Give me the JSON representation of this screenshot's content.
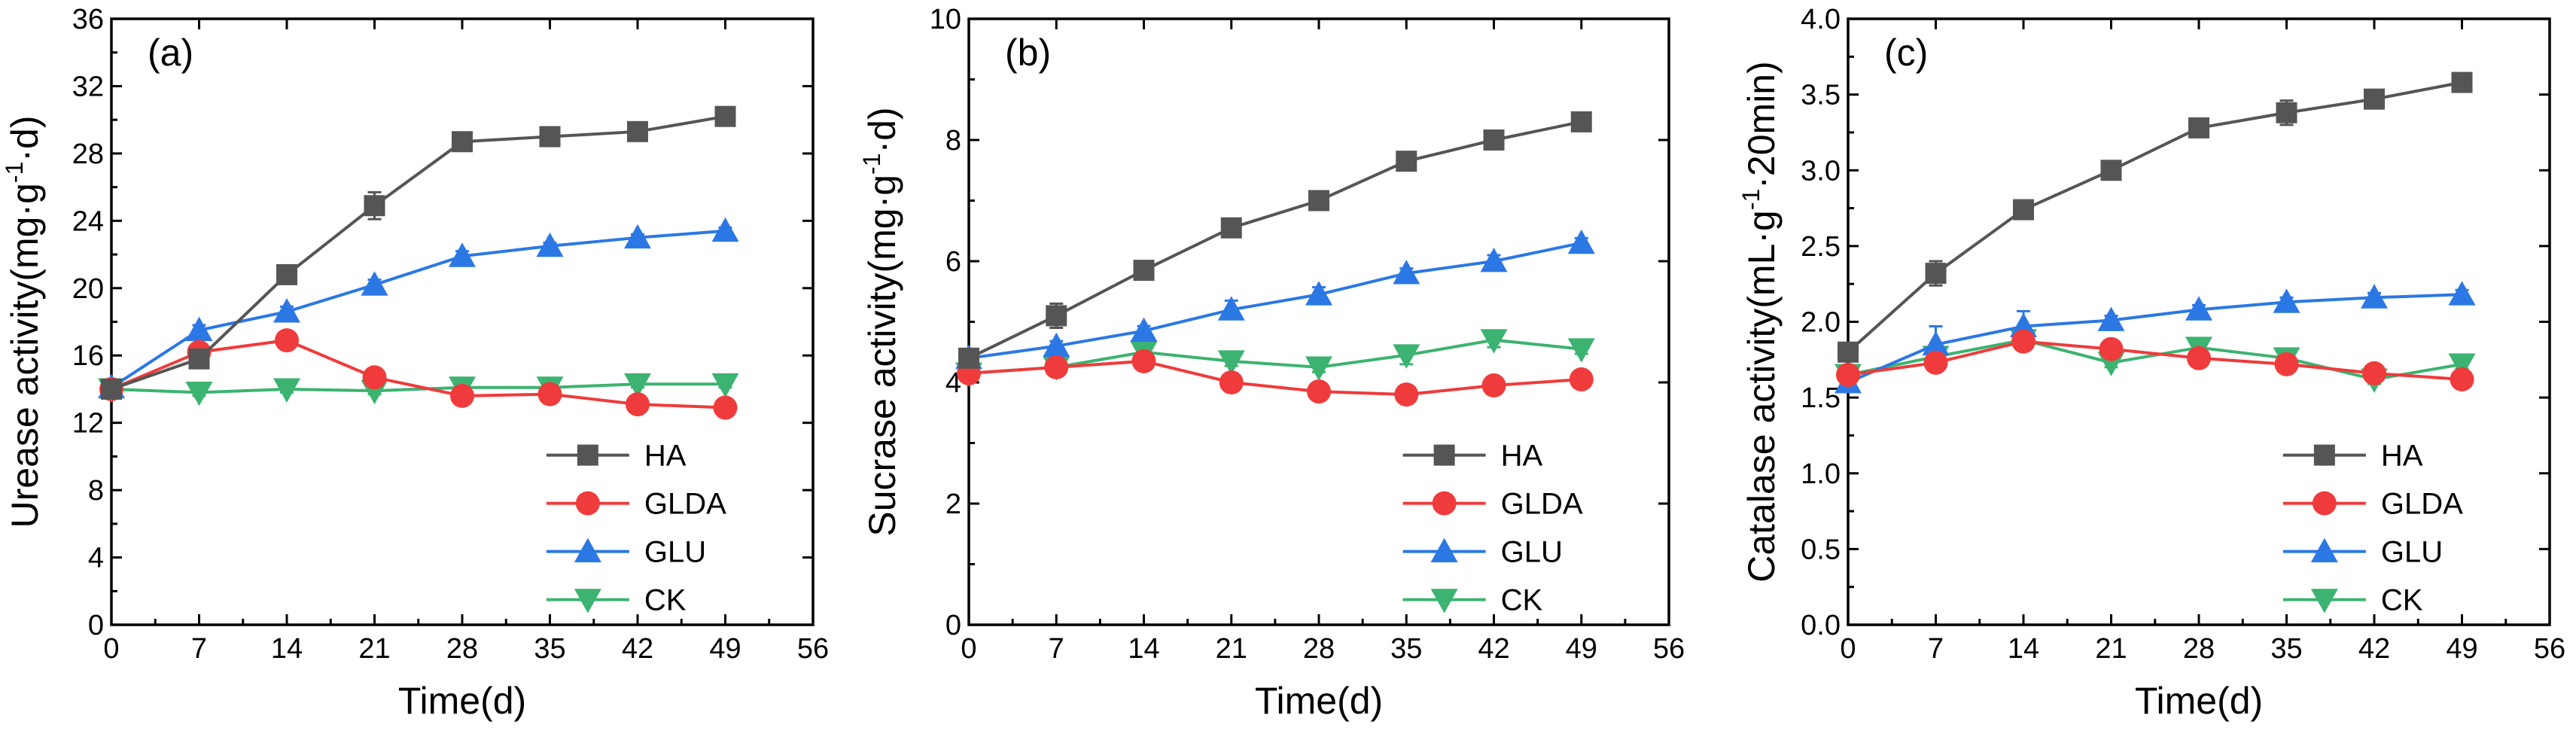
{
  "colors": {
    "HA": "#555555",
    "GLDA": "#ef3b3b",
    "GLU": "#2b78e4",
    "CK": "#3cb371"
  },
  "chart_data": [
    {
      "type": "line",
      "panel_label": "(a)",
      "title": "",
      "xlabel": "Time(d)",
      "ylabel": "Urease activity(mg·g⁻¹·d)",
      "ylabel_base": "Urease activity(mg·g",
      "ylabel_sup": "-1",
      "ylabel_end": "·d)",
      "xlim": [
        0,
        56
      ],
      "ylim": [
        0,
        36
      ],
      "xticks": [
        "0",
        "7",
        "14",
        "21",
        "28",
        "35",
        "42",
        "49",
        "56"
      ],
      "yticks": [
        "0",
        "4",
        "8",
        "12",
        "16",
        "20",
        "24",
        "28",
        "32",
        "36"
      ],
      "legend_position": "lower-right",
      "x": [
        0,
        7,
        14,
        21,
        28,
        35,
        42,
        49
      ],
      "series": [
        {
          "name": "HA",
          "marker": "square",
          "values": [
            14.0,
            15.8,
            20.8,
            24.9,
            28.7,
            29.0,
            29.3,
            30.2
          ],
          "errors": [
            0.2,
            0.4,
            0.3,
            0.8,
            0.3,
            0.2,
            0.2,
            0.3
          ]
        },
        {
          "name": "GLDA",
          "marker": "circle",
          "values": [
            14.0,
            16.2,
            16.9,
            14.7,
            13.6,
            13.7,
            13.1,
            12.9
          ],
          "errors": [
            0.2,
            0.3,
            0.3,
            0.3,
            0.2,
            0.2,
            0.2,
            0.2
          ]
        },
        {
          "name": "GLU",
          "marker": "triangle-up",
          "values": [
            14.1,
            17.5,
            18.6,
            20.2,
            21.9,
            22.5,
            23.0,
            23.4
          ],
          "errors": [
            0.2,
            0.3,
            0.3,
            0.3,
            0.3,
            0.2,
            0.2,
            0.2
          ]
        },
        {
          "name": "CK",
          "marker": "triangle-down",
          "values": [
            14.0,
            13.8,
            14.0,
            13.9,
            14.1,
            14.1,
            14.3,
            14.3
          ],
          "errors": [
            0.2,
            0.2,
            0.2,
            0.2,
            0.2,
            0.2,
            0.2,
            0.2
          ]
        }
      ]
    },
    {
      "type": "line",
      "panel_label": "(b)",
      "title": "",
      "xlabel": "Time(d)",
      "ylabel": "Sucrase activity(mg·g⁻¹·d)",
      "ylabel_base": "Sucrase activity(mg·g",
      "ylabel_sup": "-1",
      "ylabel_end": "·d)",
      "xlim": [
        0,
        56
      ],
      "ylim": [
        0,
        10
      ],
      "xticks": [
        "0",
        "7",
        "14",
        "21",
        "28",
        "35",
        "42",
        "49",
        "56"
      ],
      "yticks": [
        "0",
        "2",
        "4",
        "6",
        "8",
        "10"
      ],
      "legend_position": "lower-right",
      "x": [
        0,
        7,
        14,
        21,
        28,
        35,
        42,
        49
      ],
      "series": [
        {
          "name": "HA",
          "marker": "square",
          "values": [
            4.4,
            5.1,
            5.85,
            6.55,
            7.0,
            7.65,
            8.0,
            8.3
          ],
          "errors": [
            0.05,
            0.2,
            0.08,
            0.08,
            0.08,
            0.08,
            0.06,
            0.06
          ]
        },
        {
          "name": "GLDA",
          "marker": "circle",
          "values": [
            4.15,
            4.25,
            4.35,
            4.0,
            3.85,
            3.8,
            3.95,
            4.05
          ],
          "errors": [
            0.05,
            0.1,
            0.15,
            0.15,
            0.1,
            0.08,
            0.08,
            0.1
          ]
        },
        {
          "name": "GLU",
          "marker": "triangle-up",
          "values": [
            4.4,
            4.6,
            4.85,
            5.2,
            5.45,
            5.8,
            6.0,
            6.3
          ],
          "errors": [
            0.05,
            0.08,
            0.08,
            0.15,
            0.12,
            0.08,
            0.1,
            0.08
          ]
        },
        {
          "name": "CK",
          "marker": "triangle-down",
          "values": [
            4.15,
            4.25,
            4.5,
            4.35,
            4.25,
            4.45,
            4.7,
            4.55
          ],
          "errors": [
            0.05,
            0.08,
            0.08,
            0.08,
            0.08,
            0.15,
            0.12,
            0.08
          ]
        }
      ]
    },
    {
      "type": "line",
      "panel_label": "(c)",
      "title": "",
      "xlabel": "Time(d)",
      "ylabel": "Catalase activity(mL·g⁻¹·20min)",
      "ylabel_base": "Catalase activity(mL·g",
      "ylabel_sup": "-1",
      "ylabel_end": "·20min)",
      "xlim": [
        0,
        56
      ],
      "ylim": [
        0.0,
        4.0
      ],
      "xticks": [
        "0",
        "7",
        "14",
        "21",
        "28",
        "35",
        "42",
        "49",
        "56"
      ],
      "yticks": [
        "0.0",
        "0.5",
        "1.0",
        "1.5",
        "2.0",
        "2.5",
        "3.0",
        "3.5",
        "4.0"
      ],
      "legend_position": "lower-right",
      "x": [
        0,
        7,
        14,
        21,
        28,
        35,
        42,
        49
      ],
      "series": [
        {
          "name": "HA",
          "marker": "square",
          "values": [
            1.8,
            2.32,
            2.74,
            3.0,
            3.28,
            3.38,
            3.47,
            3.58
          ],
          "errors": [
            0.03,
            0.08,
            0.05,
            0.03,
            0.03,
            0.08,
            0.03,
            0.03
          ]
        },
        {
          "name": "GLDA",
          "marker": "circle",
          "values": [
            1.65,
            1.73,
            1.87,
            1.82,
            1.76,
            1.72,
            1.66,
            1.62
          ],
          "errors": [
            0.03,
            0.05,
            0.05,
            0.03,
            0.03,
            0.03,
            0.03,
            0.03
          ]
        },
        {
          "name": "GLU",
          "marker": "triangle-up",
          "values": [
            1.6,
            1.85,
            1.97,
            2.01,
            2.08,
            2.13,
            2.16,
            2.18
          ],
          "errors": [
            0.03,
            0.12,
            0.1,
            0.03,
            0.03,
            0.03,
            0.03,
            0.03
          ]
        },
        {
          "name": "CK",
          "marker": "triangle-down",
          "values": [
            1.65,
            1.77,
            1.88,
            1.73,
            1.83,
            1.76,
            1.62,
            1.72
          ],
          "errors": [
            0.03,
            0.05,
            0.05,
            0.03,
            0.03,
            0.03,
            0.03,
            0.03
          ]
        }
      ]
    }
  ]
}
